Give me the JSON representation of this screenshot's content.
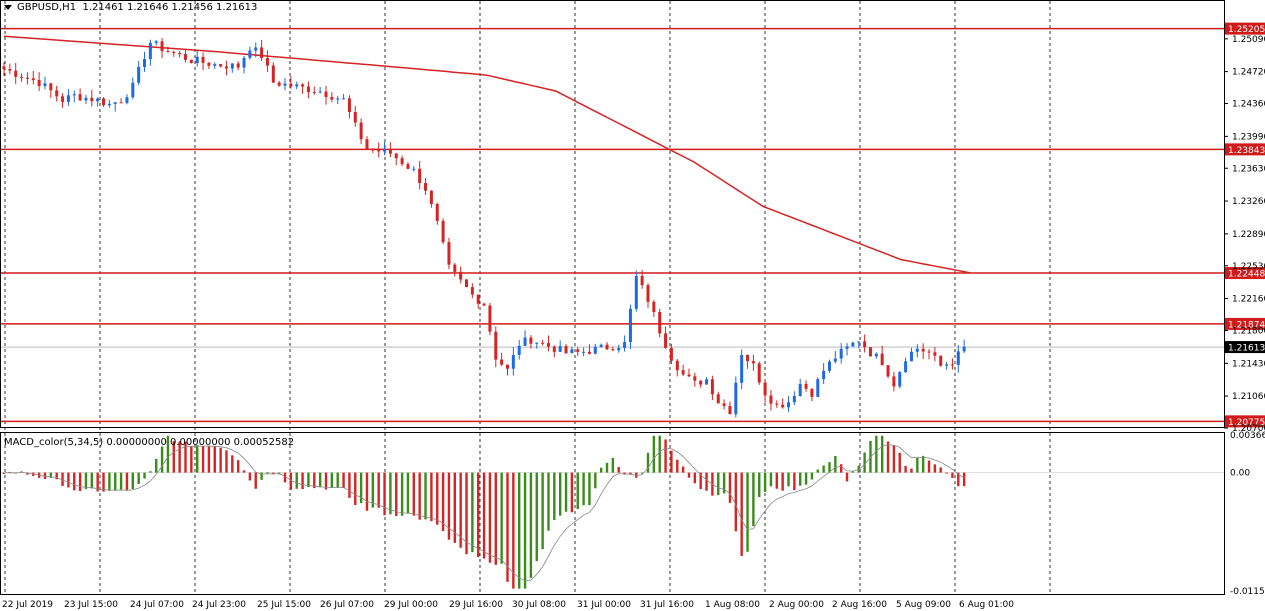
{
  "header": {
    "symbol": "GBPUSD,H1",
    "ohlc": "1.21461 1.21646 1.21456 1.21613"
  },
  "indicator": {
    "label": "MACD_color(5,34,5) 0.00000000 0.00000000 0.00052582"
  },
  "colors": {
    "bull": "#1e6be0",
    "bear": "#d42424",
    "level": "#d11b1b",
    "ma": "#d42424",
    "hist_up": "#3a8c1a",
    "hist_down": "#d42424"
  },
  "chart_data": {
    "type": "candlestick",
    "ylim": [
      1.207,
      1.2537
    ],
    "y_ticks": [
      "1.25090",
      "1.24720",
      "1.24360",
      "1.23990",
      "1.23630",
      "1.23260",
      "1.22890",
      "1.22530",
      "1.22160",
      "1.21800",
      "1.21430",
      "1.21060",
      "1.20700"
    ],
    "x_ticks": [
      "22 Jul 2019",
      "23 Jul 15:00",
      "24 Jul 07:00",
      "24 Jul 23:00",
      "25 Jul 15:00",
      "26 Jul 07:00",
      "29 Jul 00:00",
      "29 Jul 16:00",
      "30 Jul 08:00",
      "31 Jul 00:00",
      "31 Jul 16:00",
      "1 Aug 08:00",
      "2 Aug 00:00",
      "2 Aug 16:00",
      "5 Aug 09:00",
      "6 Aug 01:00"
    ],
    "levels": [
      {
        "label": "1.25205",
        "value": 1.25205
      },
      {
        "label": "1.23843",
        "value": 1.23843
      },
      {
        "label": "1.22448",
        "value": 1.22448
      },
      {
        "label": "1.21874",
        "value": 1.21874
      },
      {
        "label": "1.20775",
        "value": 1.20775
      }
    ],
    "current_price": {
      "label": "1.21613",
      "value": 1.21613
    },
    "close_path": [
      [
        0,
        1.2475
      ],
      [
        6,
        1.246
      ],
      [
        10,
        1.244
      ],
      [
        12,
        1.2445
      ],
      [
        16,
        1.244
      ],
      [
        18,
        1.2435
      ],
      [
        20,
        1.244
      ],
      [
        22,
        1.2455
      ],
      [
        24,
        1.249
      ],
      [
        25,
        1.2505
      ],
      [
        28,
        1.2495
      ],
      [
        32,
        1.2485
      ],
      [
        36,
        1.248
      ],
      [
        40,
        1.2478
      ],
      [
        42,
        1.25
      ],
      [
        44,
        1.249
      ],
      [
        46,
        1.246
      ],
      [
        50,
        1.2455
      ],
      [
        54,
        1.245
      ],
      [
        58,
        1.244
      ],
      [
        60,
        1.241
      ],
      [
        62,
        1.2385
      ],
      [
        66,
        1.238
      ],
      [
        70,
        1.236
      ],
      [
        72,
        1.234
      ],
      [
        74,
        1.23
      ],
      [
        76,
        1.225
      ],
      [
        80,
        1.222
      ],
      [
        82,
        1.221
      ],
      [
        84,
        1.215
      ],
      [
        86,
        1.2135
      ],
      [
        88,
        1.2165
      ],
      [
        90,
        1.217
      ],
      [
        92,
        1.2165
      ],
      [
        94,
        1.216
      ],
      [
        96,
        1.2155
      ],
      [
        98,
        1.2155
      ],
      [
        102,
        1.216
      ],
      [
        106,
        1.2165
      ],
      [
        108,
        1.224
      ],
      [
        110,
        1.2215
      ],
      [
        112,
        1.218
      ],
      [
        114,
        1.215
      ],
      [
        116,
        1.213
      ],
      [
        118,
        1.212
      ],
      [
        120,
        1.2125
      ],
      [
        122,
        1.21
      ],
      [
        124,
        1.209
      ],
      [
        126,
        1.2155
      ],
      [
        128,
        1.214
      ],
      [
        130,
        1.211
      ],
      [
        132,
        1.2095
      ],
      [
        134,
        1.21
      ],
      [
        136,
        1.212
      ],
      [
        138,
        1.211
      ],
      [
        140,
        1.2135
      ],
      [
        142,
        1.215
      ],
      [
        144,
        1.216
      ],
      [
        146,
        1.217
      ],
      [
        148,
        1.2155
      ],
      [
        150,
        1.2145
      ],
      [
        152,
        1.212
      ],
      [
        154,
        1.215
      ],
      [
        156,
        1.216
      ],
      [
        158,
        1.2155
      ],
      [
        160,
        1.214
      ],
      [
        162,
        1.2145
      ],
      [
        164,
        1.216
      ]
    ],
    "ma_path": [
      [
        0,
        1.2512
      ],
      [
        30,
        1.2495
      ],
      [
        60,
        1.2475
      ],
      [
        70,
        1.2468
      ],
      [
        80,
        1.245
      ],
      [
        90,
        1.241
      ],
      [
        100,
        1.237
      ],
      [
        110,
        1.232
      ],
      [
        120,
        1.229
      ],
      [
        130,
        1.226
      ],
      [
        140,
        1.2245
      ]
    ],
    "macd": {
      "ylim": [
        -0.01154,
        0.003665
      ],
      "y_ticks": [
        "0.003665",
        "0.00",
        "-0.01154"
      ]
    }
  }
}
